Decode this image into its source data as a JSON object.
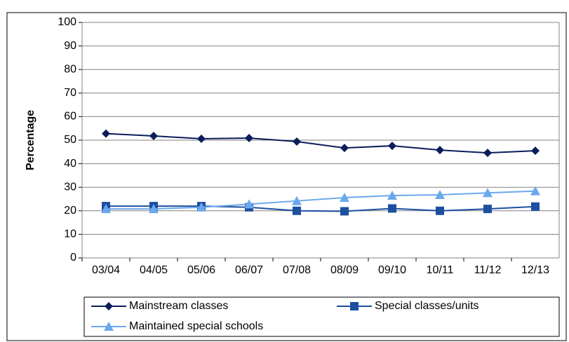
{
  "chart_data": {
    "type": "line",
    "y_label": "Percentage",
    "categories": [
      "03/04",
      "04/05",
      "05/06",
      "06/07",
      "07/08",
      "08/09",
      "09/10",
      "10/11",
      "11/12",
      "12/13"
    ],
    "series": [
      {
        "name": "Mainstream classes",
        "color": "#0b1d5c",
        "marker": "diamond",
        "values": [
          52.8,
          51.8,
          50.6,
          50.9,
          49.4,
          46.7,
          47.6,
          45.8,
          44.6,
          45.5
        ]
      },
      {
        "name": "Special classes/units",
        "color": "#1c4fa0",
        "marker": "square",
        "values": [
          22,
          22,
          22,
          21.5,
          20,
          19.8,
          21,
          20,
          20.8,
          21.8
        ]
      },
      {
        "name": "Maintained special schools",
        "color": "#6aa8ec",
        "marker": "triangle",
        "values": [
          20.8,
          20.8,
          21.5,
          22.8,
          24.2,
          25.6,
          26.5,
          26.8,
          27.6,
          28.4
        ]
      }
    ],
    "ylim": [
      0,
      100
    ],
    "yticks": [
      0,
      10,
      20,
      30,
      40,
      50,
      60,
      70,
      80,
      90,
      100
    ],
    "grid": true
  }
}
